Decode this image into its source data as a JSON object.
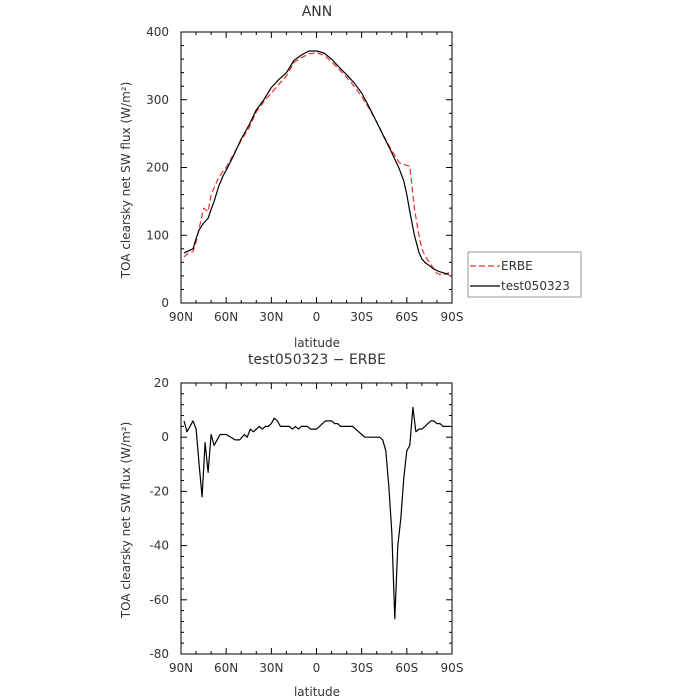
{
  "chart_data": [
    {
      "type": "line",
      "title": "ANN",
      "xlabel": "latitude",
      "ylabel": "TOA clearsky net SW flux (W/m²)",
      "xlim": [
        90,
        -90
      ],
      "ylim": [
        0,
        400
      ],
      "x_ticks": [
        {
          "value": 90,
          "label": "90N"
        },
        {
          "value": 60,
          "label": "60N"
        },
        {
          "value": 30,
          "label": "30N"
        },
        {
          "value": 0,
          "label": "0"
        },
        {
          "value": -30,
          "label": "30S"
        },
        {
          "value": -60,
          "label": "60S"
        },
        {
          "value": -90,
          "label": "90S"
        }
      ],
      "y_ticks": [
        0,
        100,
        200,
        300,
        400
      ],
      "legend": {
        "placement": "right",
        "entries": [
          "ERBE",
          "test050323"
        ]
      },
      "series": [
        {
          "name": "ERBE",
          "color": "#e8332b",
          "dash": "dashed",
          "x": [
            88,
            85,
            82,
            80,
            78,
            75,
            72,
            70,
            68,
            65,
            62,
            60,
            55,
            50,
            45,
            40,
            35,
            30,
            25,
            20,
            15,
            10,
            5,
            0,
            -5,
            -10,
            -15,
            -20,
            -25,
            -30,
            -35,
            -40,
            -45,
            -50,
            -55,
            -58,
            -60,
            -62,
            -65,
            -68,
            -70,
            -72,
            -75,
            -78,
            -80,
            -82,
            -85,
            -88
          ],
          "y": [
            68,
            74,
            76,
            90,
            110,
            140,
            135,
            160,
            170,
            185,
            195,
            200,
            220,
            240,
            258,
            282,
            297,
            310,
            323,
            335,
            355,
            362,
            368,
            369,
            366,
            356,
            345,
            333,
            320,
            305,
            287,
            267,
            245,
            225,
            207,
            205,
            203,
            202,
            140,
            100,
            80,
            70,
            60,
            50,
            44,
            42,
            42,
            45
          ]
        },
        {
          "name": "test050323",
          "color": "#000000",
          "dash": "solid",
          "x": [
            88,
            85,
            82,
            80,
            78,
            75,
            72,
            70,
            68,
            65,
            62,
            60,
            55,
            50,
            45,
            40,
            35,
            30,
            25,
            20,
            15,
            10,
            5,
            0,
            -5,
            -10,
            -15,
            -20,
            -25,
            -30,
            -35,
            -40,
            -45,
            -50,
            -55,
            -58,
            -60,
            -62,
            -65,
            -68,
            -70,
            -72,
            -75,
            -78,
            -80,
            -82,
            -85,
            -88
          ],
          "y": [
            74,
            77,
            80,
            95,
            108,
            118,
            125,
            138,
            150,
            172,
            188,
            196,
            218,
            242,
            262,
            285,
            300,
            318,
            330,
            340,
            358,
            366,
            372,
            372,
            369,
            360,
            348,
            337,
            325,
            310,
            289,
            267,
            244,
            222,
            198,
            180,
            160,
            135,
            100,
            75,
            65,
            60,
            55,
            50,
            48,
            46,
            44,
            42
          ]
        }
      ]
    },
    {
      "type": "line",
      "title": "test050323 − ERBE",
      "xlabel": "latitude",
      "ylabel": "TOA clearsky net SW flux (W/m²)",
      "xlim": [
        90,
        -90
      ],
      "ylim": [
        -80,
        20
      ],
      "x_ticks": [
        {
          "value": 90,
          "label": "90N"
        },
        {
          "value": 60,
          "label": "60N"
        },
        {
          "value": 30,
          "label": "30N"
        },
        {
          "value": 0,
          "label": "0"
        },
        {
          "value": -30,
          "label": "30S"
        },
        {
          "value": -60,
          "label": "60S"
        },
        {
          "value": -90,
          "label": "90S"
        }
      ],
      "y_ticks": [
        -80,
        -60,
        -40,
        -20,
        0,
        20
      ],
      "series": [
        {
          "color": "#000000",
          "dash": "solid",
          "x": [
            88,
            86,
            84,
            82,
            80,
            78,
            76,
            74,
            72,
            70,
            68,
            66,
            64,
            62,
            60,
            57,
            54,
            51,
            48,
            46,
            44,
            42,
            40,
            38,
            36,
            34,
            32,
            30,
            28,
            26,
            24,
            22,
            20,
            18,
            16,
            14,
            12,
            10,
            8,
            6,
            4,
            2,
            0,
            -2,
            -4,
            -6,
            -8,
            -10,
            -12,
            -14,
            -16,
            -18,
            -20,
            -22,
            -24,
            -26,
            -28,
            -30,
            -32,
            -34,
            -36,
            -38,
            -40,
            -42,
            -44,
            -46,
            -48,
            -50,
            -52,
            -54,
            -56,
            -58,
            -60,
            -62,
            -64,
            -66,
            -68,
            -70,
            -72,
            -74,
            -76,
            -78,
            -80,
            -82,
            -84,
            -86,
            -88
          ],
          "y": [
            6,
            2,
            4,
            6,
            3,
            -10,
            -22,
            -2,
            -13,
            1,
            -3,
            -1,
            1,
            1,
            1,
            0,
            -1,
            -1,
            1,
            0,
            3,
            2,
            3,
            4,
            3,
            4,
            4,
            5,
            7,
            6,
            4,
            4,
            4,
            4,
            3,
            4,
            3,
            4,
            4,
            4,
            3,
            3,
            3,
            4,
            5,
            6,
            6,
            6,
            5,
            5,
            4,
            4,
            4,
            4,
            4,
            3,
            2,
            1,
            0,
            0,
            0,
            0,
            0,
            0,
            -1,
            -5,
            -18,
            -35,
            -67,
            -40,
            -30,
            -15,
            -5,
            -3,
            11,
            2,
            3,
            3,
            4,
            5,
            6,
            6,
            5,
            5,
            4,
            4,
            4
          ]
        }
      ]
    }
  ]
}
